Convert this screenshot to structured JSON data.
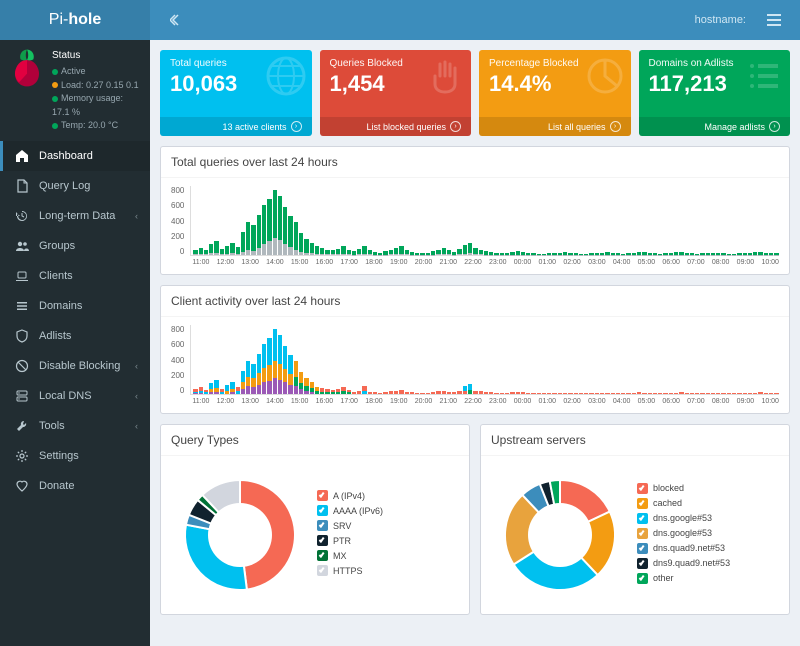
{
  "brand": {
    "thin": "Pi-",
    "bold": "hole"
  },
  "topbar": {
    "hostname_label": "hostname:"
  },
  "status": {
    "header": "Status",
    "lines": [
      {
        "color": "#00a65a",
        "text": "Active"
      },
      {
        "color": "#f39c12",
        "text": "Load: 0.27 0.15 0.1"
      },
      {
        "color": "#00a65a",
        "text": "Memory usage: 17.1 %"
      },
      {
        "color": "#00a65a",
        "text": "Temp: 20.0 °C"
      }
    ]
  },
  "nav": [
    {
      "id": "dashboard",
      "label": "Dashboard",
      "icon": "home",
      "active": true
    },
    {
      "id": "querylog",
      "label": "Query Log",
      "icon": "file"
    },
    {
      "id": "longterm",
      "label": "Long-term Data",
      "icon": "history",
      "children": true
    },
    {
      "id": "groups",
      "label": "Groups",
      "icon": "users"
    },
    {
      "id": "clients",
      "label": "Clients",
      "icon": "laptop"
    },
    {
      "id": "domains",
      "label": "Domains",
      "icon": "list"
    },
    {
      "id": "adlists",
      "label": "Adlists",
      "icon": "shield"
    },
    {
      "id": "disable",
      "label": "Disable Blocking",
      "icon": "stop",
      "children": true
    },
    {
      "id": "localdns",
      "label": "Local DNS",
      "icon": "dns",
      "children": true
    },
    {
      "id": "tools",
      "label": "Tools",
      "icon": "wrench",
      "children": true
    },
    {
      "id": "settings",
      "label": "Settings",
      "icon": "gear"
    },
    {
      "id": "donate",
      "label": "Donate",
      "icon": "heart"
    }
  ],
  "cards": [
    {
      "id": "total",
      "title": "Total queries",
      "value": "10,063",
      "footer": "13 active clients",
      "bg": "#00c0ef",
      "icon": "globe"
    },
    {
      "id": "blocked",
      "title": "Queries Blocked",
      "value": "1,454",
      "footer": "List blocked queries",
      "bg": "#dd4b39",
      "icon": "hand"
    },
    {
      "id": "percent",
      "title": "Percentage Blocked",
      "value": "14.4%",
      "footer": "List all queries",
      "bg": "#f39c12",
      "icon": "pie"
    },
    {
      "id": "adlist",
      "title": "Domains on Adlists",
      "value": "117,213",
      "footer": "Manage adlists",
      "bg": "#00a65a",
      "icon": "list"
    }
  ],
  "chart1": {
    "title": "Total queries over last 24 hours",
    "ymax": 900,
    "yticks": [
      "800",
      "600",
      "400",
      "200",
      "0"
    ],
    "colors": {
      "permitted": "#00a65a",
      "blocked": "#b0b8bd"
    },
    "xlabels": [
      "11:00",
      "12:00",
      "13:00",
      "14:00",
      "15:00",
      "16:00",
      "17:00",
      "18:00",
      "19:00",
      "20:00",
      "21:00",
      "22:00",
      "23:00",
      "00:00",
      "01:00",
      "02:00",
      "03:00",
      "04:00",
      "05:00",
      "06:00",
      "07:00",
      "08:00",
      "09:00",
      "10:00"
    ],
    "bars": [
      [
        70,
        10
      ],
      [
        90,
        12
      ],
      [
        60,
        8
      ],
      [
        140,
        20
      ],
      [
        180,
        25
      ],
      [
        80,
        10
      ],
      [
        120,
        15
      ],
      [
        160,
        20
      ],
      [
        100,
        12
      ],
      [
        300,
        40
      ],
      [
        420,
        60
      ],
      [
        380,
        55
      ],
      [
        520,
        90
      ],
      [
        640,
        140
      ],
      [
        720,
        180
      ],
      [
        830,
        220
      ],
      [
        760,
        190
      ],
      [
        620,
        140
      ],
      [
        500,
        100
      ],
      [
        420,
        70
      ],
      [
        280,
        40
      ],
      [
        200,
        30
      ],
      [
        150,
        20
      ],
      [
        120,
        15
      ],
      [
        90,
        12
      ],
      [
        70,
        10
      ],
      [
        60,
        8
      ],
      [
        80,
        10
      ],
      [
        110,
        14
      ],
      [
        70,
        9
      ],
      [
        50,
        6
      ],
      [
        80,
        10
      ],
      [
        120,
        15
      ],
      [
        60,
        8
      ],
      [
        40,
        5
      ],
      [
        30,
        4
      ],
      [
        50,
        6
      ],
      [
        70,
        9
      ],
      [
        90,
        12
      ],
      [
        110,
        14
      ],
      [
        60,
        8
      ],
      [
        40,
        5
      ],
      [
        30,
        4
      ],
      [
        20,
        3
      ],
      [
        30,
        4
      ],
      [
        50,
        6
      ],
      [
        70,
        9
      ],
      [
        90,
        12
      ],
      [
        60,
        8
      ],
      [
        40,
        5
      ],
      [
        80,
        10
      ],
      [
        130,
        16
      ],
      [
        160,
        20
      ],
      [
        90,
        12
      ],
      [
        70,
        9
      ],
      [
        50,
        6
      ],
      [
        40,
        5
      ],
      [
        30,
        4
      ],
      [
        20,
        3
      ],
      [
        30,
        4
      ],
      [
        40,
        5
      ],
      [
        50,
        6
      ],
      [
        40,
        5
      ],
      [
        30,
        4
      ],
      [
        20,
        3
      ],
      [
        18,
        2
      ],
      [
        15,
        2
      ],
      [
        20,
        3
      ],
      [
        25,
        3
      ],
      [
        30,
        4
      ],
      [
        35,
        4
      ],
      [
        28,
        3
      ],
      [
        22,
        3
      ],
      [
        18,
        2
      ],
      [
        15,
        2
      ],
      [
        20,
        3
      ],
      [
        25,
        3
      ],
      [
        30,
        4
      ],
      [
        35,
        4
      ],
      [
        28,
        3
      ],
      [
        22,
        3
      ],
      [
        18,
        2
      ],
      [
        25,
        3
      ],
      [
        32,
        4
      ],
      [
        40,
        5
      ],
      [
        35,
        4
      ],
      [
        28,
        3
      ],
      [
        22,
        3
      ],
      [
        18,
        2
      ],
      [
        25,
        3
      ],
      [
        30,
        4
      ],
      [
        35,
        4
      ],
      [
        40,
        5
      ],
      [
        32,
        4
      ],
      [
        25,
        3
      ],
      [
        18,
        2
      ],
      [
        22,
        3
      ],
      [
        28,
        3
      ],
      [
        32,
        4
      ],
      [
        25,
        3
      ],
      [
        20,
        3
      ],
      [
        18,
        2
      ],
      [
        15,
        2
      ],
      [
        20,
        3
      ],
      [
        25,
        3
      ],
      [
        30,
        4
      ],
      [
        35,
        4
      ],
      [
        40,
        5
      ],
      [
        32,
        4
      ],
      [
        25,
        3
      ],
      [
        22,
        3
      ]
    ]
  },
  "chart2": {
    "title": "Client activity over last 24 hours",
    "ymax": 900,
    "yticks": [
      "800",
      "600",
      "400",
      "200",
      "0"
    ],
    "colors": [
      "#f56954",
      "#00c0ef",
      "#f39c12",
      "#00a65a",
      "#9b59b6",
      "#34495e",
      "#7f8c8d"
    ],
    "xlabels": [
      "11:00",
      "12:00",
      "13:00",
      "14:00",
      "15:00",
      "16:00",
      "17:00",
      "18:00",
      "19:00",
      "20:00",
      "21:00",
      "22:00",
      "23:00",
      "00:00",
      "01:00",
      "02:00",
      "03:00",
      "04:00",
      "05:00",
      "06:00",
      "07:00",
      "08:00",
      "09:00",
      "10:00"
    ],
    "bars": [
      [
        [
          0,
          40
        ],
        [
          1,
          20
        ],
        [
          4,
          10
        ]
      ],
      [
        [
          0,
          50
        ],
        [
          1,
          30
        ],
        [
          4,
          10
        ]
      ],
      [
        [
          0,
          30
        ],
        [
          1,
          20
        ]
      ],
      [
        [
          1,
          80
        ],
        [
          2,
          40
        ],
        [
          4,
          20
        ]
      ],
      [
        [
          1,
          100
        ],
        [
          2,
          50
        ],
        [
          4,
          30
        ]
      ],
      [
        [
          0,
          40
        ],
        [
          1,
          30
        ]
      ],
      [
        [
          1,
          70
        ],
        [
          2,
          40
        ]
      ],
      [
        [
          1,
          90
        ],
        [
          2,
          50
        ],
        [
          4,
          20
        ]
      ],
      [
        [
          0,
          50
        ],
        [
          1,
          40
        ]
      ],
      [
        [
          1,
          150
        ],
        [
          2,
          80
        ],
        [
          4,
          70
        ]
      ],
      [
        [
          1,
          200
        ],
        [
          2,
          120
        ],
        [
          4,
          100
        ]
      ],
      [
        [
          1,
          180
        ],
        [
          2,
          110
        ],
        [
          4,
          90
        ]
      ],
      [
        [
          1,
          250
        ],
        [
          2,
          150
        ],
        [
          4,
          120
        ]
      ],
      [
        [
          1,
          300
        ],
        [
          2,
          180
        ],
        [
          4,
          160
        ]
      ],
      [
        [
          1,
          350
        ],
        [
          2,
          200
        ],
        [
          4,
          170
        ]
      ],
      [
        [
          1,
          400
        ],
        [
          2,
          230
        ],
        [
          4,
          200
        ]
      ],
      [
        [
          1,
          370
        ],
        [
          2,
          210
        ],
        [
          4,
          180
        ]
      ],
      [
        [
          1,
          300
        ],
        [
          2,
          170
        ],
        [
          4,
          150
        ]
      ],
      [
        [
          1,
          240
        ],
        [
          2,
          140
        ],
        [
          4,
          120
        ]
      ],
      [
        [
          2,
          200
        ],
        [
          3,
          120
        ],
        [
          4,
          100
        ]
      ],
      [
        [
          2,
          140
        ],
        [
          3,
          80
        ],
        [
          4,
          60
        ]
      ],
      [
        [
          2,
          100
        ],
        [
          3,
          60
        ],
        [
          4,
          40
        ]
      ],
      [
        [
          2,
          75
        ],
        [
          3,
          45
        ],
        [
          4,
          30
        ]
      ],
      [
        [
          2,
          60
        ],
        [
          3,
          35
        ]
      ],
      [
        [
          0,
          45
        ],
        [
          3,
          30
        ]
      ],
      [
        [
          0,
          35
        ],
        [
          3,
          25
        ]
      ],
      [
        [
          0,
          30
        ],
        [
          3,
          20
        ]
      ],
      [
        [
          0,
          40
        ],
        [
          3,
          25
        ]
      ],
      [
        [
          0,
          55
        ],
        [
          3,
          35
        ]
      ],
      [
        [
          0,
          35
        ],
        [
          3,
          22
        ]
      ],
      [
        [
          0,
          25
        ]
      ],
      [
        [
          0,
          40
        ]
      ],
      [
        [
          0,
          60
        ],
        [
          1,
          40
        ]
      ],
      [
        [
          0,
          30
        ]
      ],
      [
        [
          0,
          20
        ]
      ],
      [
        [
          0,
          15
        ]
      ],
      [
        [
          0,
          25
        ]
      ],
      [
        [
          0,
          35
        ]
      ],
      [
        [
          0,
          45
        ]
      ],
      [
        [
          0,
          55
        ]
      ],
      [
        [
          0,
          30
        ]
      ],
      [
        [
          0,
          20
        ]
      ],
      [
        [
          0,
          15
        ]
      ],
      [
        [
          0,
          10
        ]
      ],
      [
        [
          0,
          15
        ]
      ],
      [
        [
          0,
          25
        ]
      ],
      [
        [
          0,
          35
        ]
      ],
      [
        [
          0,
          45
        ]
      ],
      [
        [
          0,
          30
        ]
      ],
      [
        [
          0,
          20
        ]
      ],
      [
        [
          0,
          40
        ]
      ],
      [
        [
          1,
          65
        ],
        [
          0,
          40
        ]
      ],
      [
        [
          1,
          80
        ],
        [
          3,
          50
        ]
      ],
      [
        [
          0,
          45
        ]
      ],
      [
        [
          0,
          35
        ]
      ],
      [
        [
          0,
          25
        ]
      ],
      [
        [
          0,
          20
        ]
      ],
      [
        [
          0,
          15
        ]
      ],
      [
        [
          0,
          10
        ]
      ],
      [
        [
          0,
          15
        ]
      ],
      [
        [
          0,
          20
        ]
      ],
      [
        [
          0,
          25
        ]
      ],
      [
        [
          0,
          20
        ]
      ],
      [
        [
          0,
          15
        ]
      ],
      [
        [
          0,
          10
        ]
      ],
      [
        [
          0,
          9
        ]
      ],
      [
        [
          0,
          8
        ]
      ],
      [
        [
          0,
          10
        ]
      ],
      [
        [
          0,
          12
        ]
      ],
      [
        [
          0,
          15
        ]
      ],
      [
        [
          0,
          17
        ]
      ],
      [
        [
          0,
          14
        ]
      ],
      [
        [
          0,
          11
        ]
      ],
      [
        [
          0,
          9
        ]
      ],
      [
        [
          0,
          8
        ]
      ],
      [
        [
          0,
          10
        ]
      ],
      [
        [
          0,
          12
        ]
      ],
      [
        [
          0,
          15
        ]
      ],
      [
        [
          0,
          17
        ]
      ],
      [
        [
          0,
          14
        ]
      ],
      [
        [
          0,
          11
        ]
      ],
      [
        [
          0,
          9
        ]
      ],
      [
        [
          0,
          12
        ]
      ],
      [
        [
          0,
          16
        ]
      ],
      [
        [
          0,
          20
        ]
      ],
      [
        [
          0,
          17
        ]
      ],
      [
        [
          0,
          14
        ]
      ],
      [
        [
          0,
          11
        ]
      ],
      [
        [
          0,
          9
        ]
      ],
      [
        [
          0,
          12
        ]
      ],
      [
        [
          0,
          15
        ]
      ],
      [
        [
          0,
          17
        ]
      ],
      [
        [
          0,
          20
        ]
      ],
      [
        [
          0,
          16
        ]
      ],
      [
        [
          0,
          12
        ]
      ],
      [
        [
          0,
          9
        ]
      ],
      [
        [
          0,
          11
        ]
      ],
      [
        [
          0,
          14
        ]
      ],
      [
        [
          0,
          16
        ]
      ],
      [
        [
          0,
          12
        ]
      ],
      [
        [
          0,
          10
        ]
      ],
      [
        [
          0,
          9
        ]
      ],
      [
        [
          0,
          8
        ]
      ],
      [
        [
          0,
          10
        ]
      ],
      [
        [
          0,
          12
        ]
      ],
      [
        [
          0,
          15
        ]
      ],
      [
        [
          0,
          17
        ]
      ],
      [
        [
          0,
          20
        ]
      ],
      [
        [
          0,
          16
        ]
      ],
      [
        [
          0,
          12
        ]
      ],
      [
        [
          0,
          11
        ]
      ]
    ]
  },
  "donut1": {
    "title": "Query Types",
    "items": [
      {
        "label": "A (IPv4)",
        "value": 48,
        "color": "#f56954"
      },
      {
        "label": "AAAA (IPv6)",
        "value": 30,
        "color": "#00c0ef"
      },
      {
        "label": "SRV",
        "value": 3,
        "color": "#3c8dbc"
      },
      {
        "label": "PTR",
        "value": 5,
        "color": "#10222e"
      },
      {
        "label": "MX",
        "value": 2,
        "color": "#007236"
      },
      {
        "label": "HTTPS",
        "value": 12,
        "color": "#d2d6de"
      }
    ]
  },
  "donut2": {
    "title": "Upstream servers",
    "items": [
      {
        "label": "blocked",
        "value": 18,
        "color": "#f56954"
      },
      {
        "label": "cached",
        "value": 20,
        "color": "#f39c12"
      },
      {
        "label": "dns.google#53",
        "value": 28,
        "color": "#00c0ef"
      },
      {
        "label": "dns.google#53",
        "value": 22,
        "color": "#e8a33d"
      },
      {
        "label": "dns.quad9.net#53",
        "value": 6,
        "color": "#3c8dbc"
      },
      {
        "label": "dns9.quad9.net#53",
        "value": 3,
        "color": "#10222e"
      },
      {
        "label": "other",
        "value": 3,
        "color": "#00a65a"
      }
    ]
  }
}
